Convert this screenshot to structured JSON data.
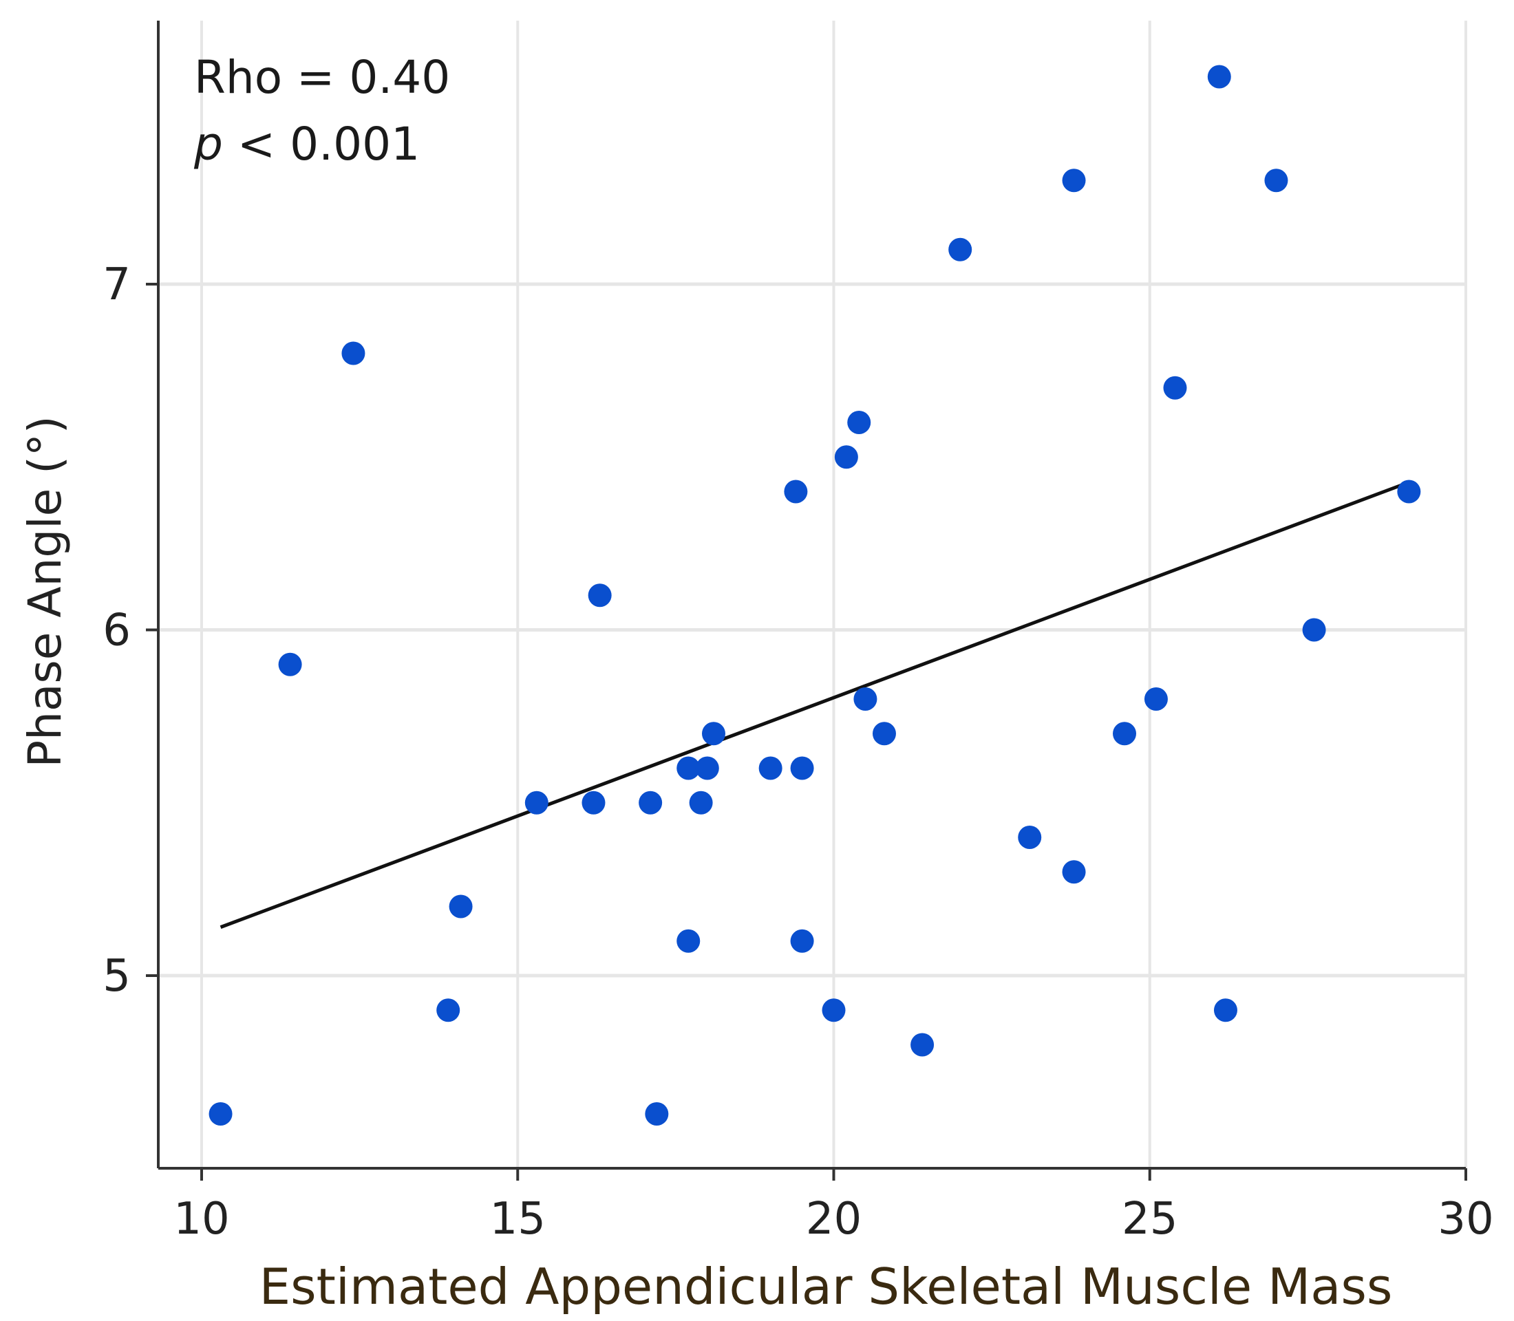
{
  "chart_data": {
    "type": "scatter",
    "title": "",
    "xlabel": "Estimated Appendicular Skeletal Muscle Mass",
    "ylabel": "Phase Angle (°)",
    "xlim": [
      9.3,
      30.0
    ],
    "ylim": [
      4.45,
      7.7
    ],
    "xticks": [
      10,
      15,
      20,
      25,
      30
    ],
    "yticks": [
      5,
      6,
      7
    ],
    "xtick_labels": [
      "10",
      "15",
      "20",
      "25",
      "30"
    ],
    "ytick_labels": [
      "5",
      "6",
      "7"
    ],
    "grid": true,
    "annotations": [
      {
        "text": "Rho = 0.40"
      },
      {
        "prefix": "p",
        "text": " < 0.001"
      }
    ],
    "points": [
      {
        "x": 10.3,
        "y": 4.6
      },
      {
        "x": 11.4,
        "y": 5.9
      },
      {
        "x": 12.4,
        "y": 6.8
      },
      {
        "x": 13.9,
        "y": 4.9
      },
      {
        "x": 14.1,
        "y": 5.2
      },
      {
        "x": 15.3,
        "y": 5.5
      },
      {
        "x": 16.2,
        "y": 5.5
      },
      {
        "x": 16.3,
        "y": 6.1
      },
      {
        "x": 17.1,
        "y": 5.5
      },
      {
        "x": 17.2,
        "y": 4.6
      },
      {
        "x": 17.7,
        "y": 5.1
      },
      {
        "x": 17.7,
        "y": 5.6
      },
      {
        "x": 17.9,
        "y": 5.5
      },
      {
        "x": 18.0,
        "y": 5.6
      },
      {
        "x": 18.1,
        "y": 5.7
      },
      {
        "x": 19.0,
        "y": 5.6
      },
      {
        "x": 19.4,
        "y": 6.4
      },
      {
        "x": 19.5,
        "y": 5.6
      },
      {
        "x": 19.5,
        "y": 5.1
      },
      {
        "x": 20.0,
        "y": 4.9
      },
      {
        "x": 20.2,
        "y": 6.5
      },
      {
        "x": 20.4,
        "y": 6.6
      },
      {
        "x": 20.5,
        "y": 5.8
      },
      {
        "x": 20.8,
        "y": 5.7
      },
      {
        "x": 21.4,
        "y": 4.8
      },
      {
        "x": 22.0,
        "y": 7.1
      },
      {
        "x": 23.1,
        "y": 5.4
      },
      {
        "x": 23.8,
        "y": 5.3
      },
      {
        "x": 23.8,
        "y": 7.3
      },
      {
        "x": 24.6,
        "y": 5.7
      },
      {
        "x": 25.1,
        "y": 5.8
      },
      {
        "x": 25.4,
        "y": 6.7
      },
      {
        "x": 26.1,
        "y": 7.6
      },
      {
        "x": 26.2,
        "y": 4.9
      },
      {
        "x": 27.0,
        "y": 7.3
      },
      {
        "x": 27.6,
        "y": 6.0
      },
      {
        "x": 29.1,
        "y": 6.4
      }
    ],
    "fit_line": {
      "x": [
        10.3,
        29.0
      ],
      "y": [
        5.14,
        6.42
      ]
    },
    "colors": {
      "point": "#0a4fce",
      "fit": "#111111",
      "grid": "#e6e6e6",
      "axis": "#333333"
    }
  }
}
